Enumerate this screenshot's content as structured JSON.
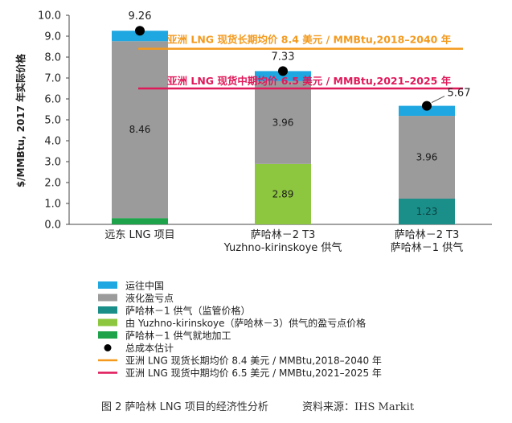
{
  "chart_data": {
    "type": "bar",
    "stacked": true,
    "ylabel": "$/MMBtu, 2017 年实际价格",
    "ylim": [
      0,
      10
    ],
    "yticks": [
      "0.0",
      "1.0",
      "2.0",
      "3.0",
      "4.0",
      "5.0",
      "6.0",
      "7.0",
      "8.0",
      "9.0",
      "10.0"
    ],
    "categories": [
      [
        "远东 LNG 项目"
      ],
      [
        "萨哈林－2 T3",
        "Yuzhno-kirinskoye 供气"
      ],
      [
        "萨哈林－2 T3",
        "萨哈林－1 供气"
      ]
    ],
    "series": [
      {
        "key": "sakhalin1_onsite",
        "name": "萨哈林－1 供气就地加工",
        "color": "#1fa34a",
        "values": [
          0.3,
          0,
          0
        ]
      },
      {
        "key": "sakhalin1_regulated",
        "name": "萨哈林－1 供气（监管价格）",
        "color": "#1a8f8a",
        "values": [
          0,
          0,
          1.23
        ]
      },
      {
        "key": "yuzhno_breakeven",
        "name": "由 Yuzhno-kirinskoye（萨哈林－3）供气的盈亏点价格",
        "color": "#8dc63f",
        "values": [
          0,
          2.89,
          0
        ]
      },
      {
        "key": "liquefaction",
        "name": "液化盈亏点",
        "color": "#9b9b9b",
        "values": [
          8.46,
          3.96,
          3.96
        ]
      },
      {
        "key": "shipping",
        "name": "运往中国",
        "color": "#1ea7e0",
        "values": [
          0.5,
          0.48,
          0.48
        ]
      }
    ],
    "segment_labels": [
      {
        "bar": 0,
        "series": "liquefaction",
        "text": "8.46"
      },
      {
        "bar": 1,
        "series": "yuzhno_breakeven",
        "text": "2.89"
      },
      {
        "bar": 1,
        "series": "liquefaction",
        "text": "3.96"
      },
      {
        "bar": 2,
        "series": "sakhalin1_regulated",
        "text": "1.23"
      },
      {
        "bar": 2,
        "series": "liquefaction",
        "text": "3.96"
      }
    ],
    "total_cost": {
      "name": "总成本估计",
      "color": "#000000",
      "values": [
        9.26,
        7.33,
        5.67
      ],
      "labels": [
        "9.26",
        "7.33",
        "5.67"
      ]
    },
    "reference_lines": [
      {
        "key": "long_term",
        "name": "亚洲 LNG 现货长期均价 8.4 美元 / MMBtu,2018–2040 年",
        "label": "亚洲 LNG 现货长期均价 8.4 美元 / MMBtu,2018–2040 年",
        "value": 8.4,
        "color": "#f39a1e"
      },
      {
        "key": "mid_term",
        "name": "亚洲 LNG 现货中期均价 6.5 美元 / MMBtu,2021–2025 年",
        "label": "亚洲 LNG 现货中期均价 6.5 美元 / MMBtu,2021–2025 年",
        "value": 6.5,
        "color": "#e0195a"
      }
    ],
    "legend_order": [
      "shipping",
      "liquefaction",
      "sakhalin1_regulated",
      "yuzhno_breakeven",
      "sakhalin1_onsite",
      "total",
      "long_term",
      "mid_term"
    ],
    "legend_position": "bottom-left",
    "grid": false
  },
  "caption": {
    "title": "图 2 萨哈林 LNG 项目的经济性分析",
    "source": "资料来源：IHS Markit"
  }
}
